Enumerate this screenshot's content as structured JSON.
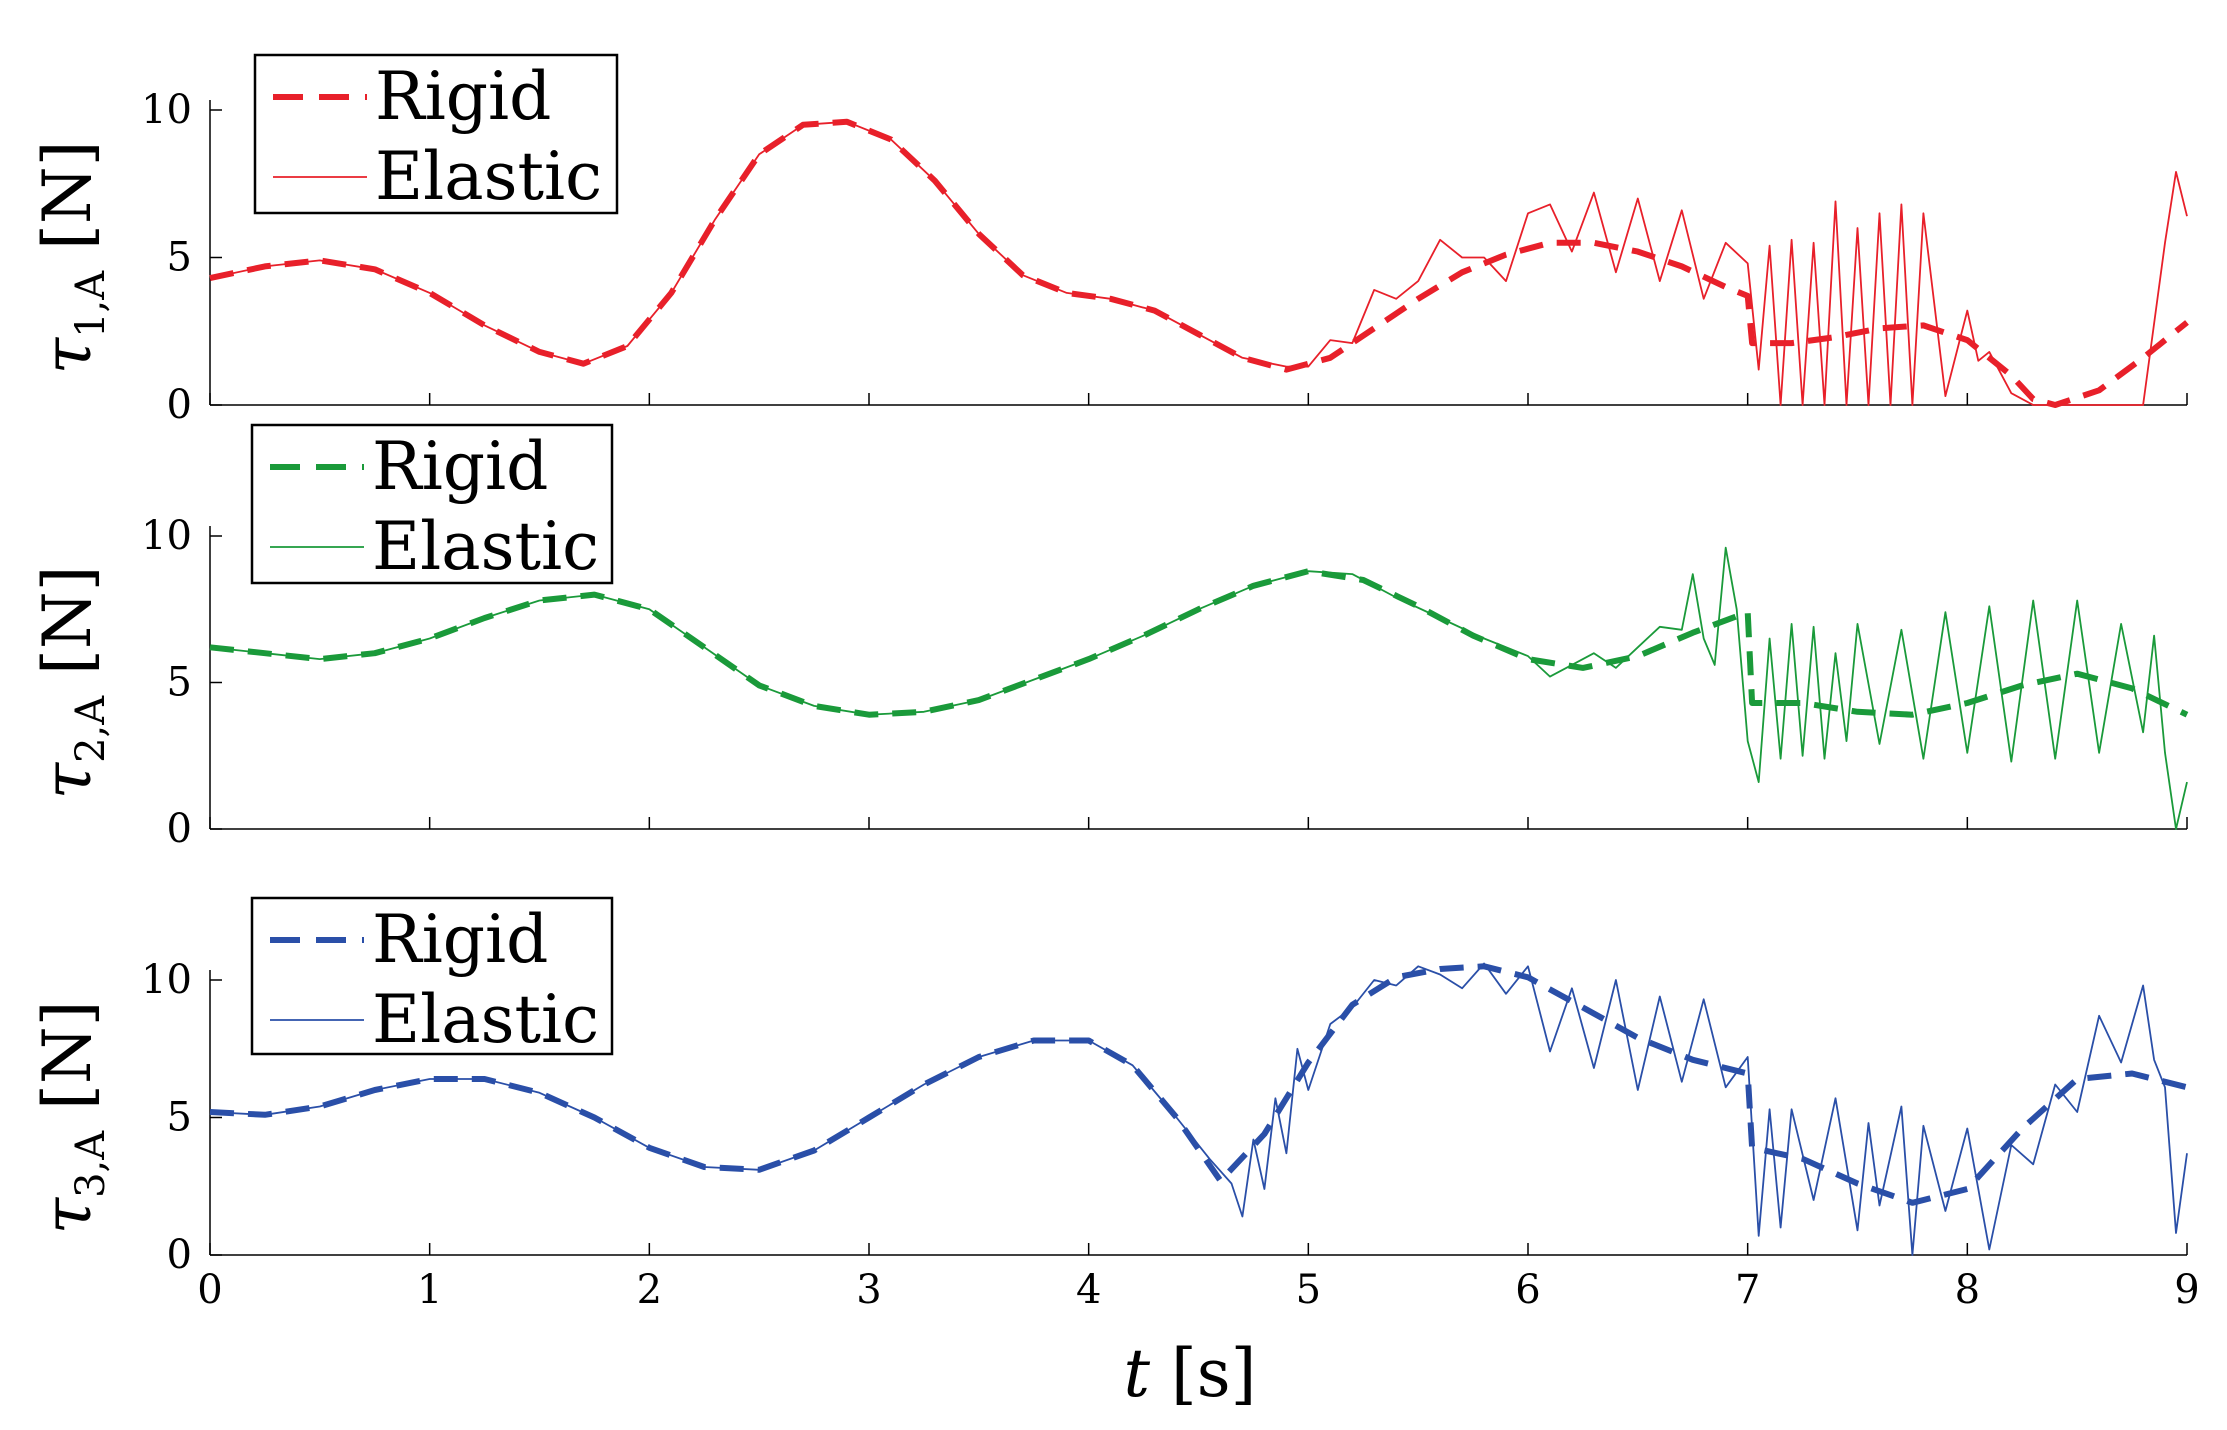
{
  "chart_data": [
    {
      "type": "line",
      "ylabel": "τ1,A [N]",
      "ylim": [
        0,
        10
      ],
      "xlim": [
        0,
        9
      ],
      "yticks": [
        "0",
        "5",
        "10"
      ],
      "legend_position": "top-left",
      "series": [
        {
          "name": "Rigid",
          "color": "#e8202a",
          "style": "dashed",
          "x": [
            0,
            0.25,
            0.5,
            0.75,
            1.0,
            1.25,
            1.5,
            1.7,
            1.9,
            2.1,
            2.3,
            2.5,
            2.7,
            2.9,
            3.1,
            3.3,
            3.5,
            3.7,
            3.9,
            4.1,
            4.3,
            4.5,
            4.7,
            4.9,
            5.1,
            5.3,
            5.5,
            5.7,
            5.9,
            6.1,
            6.3,
            6.5,
            6.7,
            6.9,
            7.0,
            7.02,
            7.2,
            7.4,
            7.6,
            7.8,
            8.0,
            8.2,
            8.3,
            8.4,
            8.6,
            8.8,
            9.0
          ],
          "y": [
            4.3,
            4.7,
            4.9,
            4.6,
            3.8,
            2.7,
            1.8,
            1.4,
            2.0,
            3.8,
            6.3,
            8.5,
            9.5,
            9.6,
            9.0,
            7.6,
            5.8,
            4.4,
            3.8,
            3.6,
            3.2,
            2.4,
            1.6,
            1.2,
            1.6,
            2.6,
            3.6,
            4.5,
            5.1,
            5.5,
            5.5,
            5.2,
            4.7,
            4.0,
            3.7,
            2.1,
            2.1,
            2.3,
            2.6,
            2.7,
            2.2,
            1.0,
            0.2,
            0.0,
            0.5,
            1.6,
            2.8
          ]
        },
        {
          "name": "Elastic",
          "color": "#e8202a",
          "style": "solid",
          "x": [
            0,
            0.25,
            0.5,
            0.75,
            1.0,
            1.25,
            1.5,
            1.7,
            1.9,
            2.1,
            2.3,
            2.5,
            2.7,
            2.9,
            3.1,
            3.3,
            3.5,
            3.7,
            3.9,
            4.1,
            4.3,
            4.5,
            4.7,
            4.9,
            5.0,
            5.1,
            5.2,
            5.3,
            5.4,
            5.5,
            5.6,
            5.7,
            5.8,
            5.9,
            6.0,
            6.1,
            6.2,
            6.3,
            6.4,
            6.5,
            6.6,
            6.7,
            6.8,
            6.9,
            7.0,
            7.05,
            7.1,
            7.15,
            7.2,
            7.25,
            7.3,
            7.35,
            7.4,
            7.45,
            7.5,
            7.55,
            7.6,
            7.65,
            7.7,
            7.75,
            7.8,
            7.9,
            8.0,
            8.05,
            8.1,
            8.2,
            8.3,
            8.5,
            8.7,
            8.8,
            8.9,
            8.95,
            9.0
          ],
          "y": [
            4.3,
            4.7,
            4.9,
            4.6,
            3.8,
            2.7,
            1.8,
            1.4,
            2.0,
            3.8,
            6.3,
            8.5,
            9.5,
            9.6,
            9.0,
            7.6,
            5.8,
            4.4,
            3.8,
            3.6,
            3.2,
            2.4,
            1.6,
            1.3,
            1.3,
            2.2,
            2.1,
            3.9,
            3.6,
            4.2,
            5.6,
            5.0,
            5.0,
            4.2,
            6.5,
            6.8,
            5.2,
            7.2,
            4.5,
            7.0,
            4.2,
            6.6,
            3.6,
            5.5,
            4.8,
            1.2,
            5.4,
            0.0,
            5.6,
            0.0,
            5.5,
            0.0,
            6.9,
            0.0,
            6.0,
            0.0,
            6.5,
            0.0,
            6.8,
            0.0,
            6.5,
            0.3,
            3.2,
            1.5,
            1.8,
            0.4,
            0.0,
            0.0,
            0.0,
            0.0,
            5.5,
            7.9,
            6.4
          ]
        }
      ]
    },
    {
      "type": "line",
      "ylabel": "τ2,A [N]",
      "ylim": [
        0,
        10
      ],
      "xlim": [
        0,
        9
      ],
      "yticks": [
        "0",
        "5",
        "10"
      ],
      "legend_position": "top-left",
      "series": [
        {
          "name": "Rigid",
          "color": "#1a9a3a",
          "style": "dashed",
          "x": [
            0,
            0.25,
            0.5,
            0.75,
            1.0,
            1.25,
            1.5,
            1.75,
            2.0,
            2.25,
            2.5,
            2.75,
            3.0,
            3.25,
            3.5,
            3.75,
            4.0,
            4.25,
            4.5,
            4.75,
            5.0,
            5.25,
            5.5,
            5.75,
            6.0,
            6.25,
            6.5,
            6.75,
            7.0,
            7.02,
            7.25,
            7.5,
            7.75,
            8.0,
            8.25,
            8.5,
            8.75,
            9.0
          ],
          "y": [
            6.2,
            6.0,
            5.8,
            6.0,
            6.5,
            7.2,
            7.8,
            8.0,
            7.5,
            6.2,
            4.9,
            4.2,
            3.9,
            4.0,
            4.4,
            5.1,
            5.8,
            6.6,
            7.5,
            8.3,
            8.8,
            8.5,
            7.6,
            6.6,
            5.8,
            5.5,
            5.9,
            6.7,
            7.4,
            4.3,
            4.3,
            4.0,
            3.9,
            4.3,
            4.9,
            5.3,
            4.8,
            3.9
          ]
        },
        {
          "name": "Elastic",
          "color": "#1a9a3a",
          "style": "solid",
          "x": [
            0,
            0.25,
            0.5,
            0.75,
            1.0,
            1.25,
            1.5,
            1.75,
            2.0,
            2.25,
            2.5,
            2.75,
            3.0,
            3.25,
            3.5,
            3.75,
            4.0,
            4.25,
            4.5,
            4.75,
            5.0,
            5.2,
            5.4,
            5.6,
            5.8,
            6.0,
            6.1,
            6.2,
            6.3,
            6.4,
            6.5,
            6.6,
            6.7,
            6.75,
            6.8,
            6.85,
            6.9,
            6.95,
            7.0,
            7.05,
            7.1,
            7.15,
            7.2,
            7.25,
            7.3,
            7.35,
            7.4,
            7.45,
            7.5,
            7.6,
            7.7,
            7.8,
            7.9,
            8.0,
            8.1,
            8.2,
            8.3,
            8.4,
            8.5,
            8.6,
            8.7,
            8.8,
            8.85,
            8.9,
            8.95,
            9.0
          ],
          "y": [
            6.2,
            6.0,
            5.8,
            6.0,
            6.5,
            7.2,
            7.8,
            8.0,
            7.5,
            6.2,
            4.9,
            4.2,
            3.9,
            4.0,
            4.4,
            5.1,
            5.8,
            6.6,
            7.5,
            8.3,
            8.8,
            8.7,
            7.9,
            7.2,
            6.5,
            5.9,
            5.2,
            5.6,
            6.0,
            5.5,
            6.2,
            6.9,
            6.8,
            8.7,
            6.5,
            5.6,
            9.6,
            7.5,
            3.0,
            1.6,
            6.5,
            2.4,
            7.0,
            2.5,
            6.9,
            2.4,
            6.0,
            3.0,
            7.0,
            2.9,
            6.8,
            2.4,
            7.4,
            2.6,
            7.6,
            2.3,
            7.8,
            2.4,
            7.8,
            2.6,
            7.0,
            3.3,
            6.6,
            2.6,
            0.0,
            1.6
          ]
        }
      ]
    },
    {
      "type": "line",
      "ylabel": "τ3,A [N]",
      "xlabel": "t [s]",
      "ylim": [
        0,
        10
      ],
      "xlim": [
        0,
        9
      ],
      "yticks": [
        "0",
        "5",
        "10"
      ],
      "xticks": [
        "0",
        "1",
        "2",
        "3",
        "4",
        "5",
        "6",
        "7",
        "8",
        "9"
      ],
      "legend_position": "top-left",
      "series": [
        {
          "name": "Rigid",
          "color": "#2a4fa8",
          "style": "dashed",
          "x": [
            0,
            0.25,
            0.5,
            0.75,
            1.0,
            1.25,
            1.5,
            1.75,
            2.0,
            2.25,
            2.5,
            2.75,
            3.0,
            3.25,
            3.5,
            3.75,
            4.0,
            4.2,
            4.4,
            4.6,
            4.8,
            5.0,
            5.2,
            5.4,
            5.6,
            5.8,
            6.0,
            6.25,
            6.5,
            6.75,
            7.0,
            7.02,
            7.25,
            7.5,
            7.75,
            8.0,
            8.25,
            8.5,
            8.75,
            9.0
          ],
          "y": [
            5.2,
            5.1,
            5.4,
            6.0,
            6.4,
            6.4,
            5.9,
            5.0,
            3.9,
            3.2,
            3.1,
            3.8,
            5.0,
            6.2,
            7.2,
            7.8,
            7.8,
            6.9,
            5.0,
            2.7,
            4.4,
            7.0,
            9.1,
            10.1,
            10.4,
            10.5,
            10.1,
            9.0,
            7.9,
            7.1,
            6.6,
            3.9,
            3.5,
            2.6,
            1.9,
            2.4,
            4.6,
            6.4,
            6.6,
            6.1
          ]
        },
        {
          "name": "Elastic",
          "color": "#2a4fa8",
          "style": "solid",
          "x": [
            0,
            0.25,
            0.5,
            0.75,
            1.0,
            1.25,
            1.5,
            1.75,
            2.0,
            2.25,
            2.5,
            2.75,
            3.0,
            3.25,
            3.5,
            3.75,
            4.0,
            4.2,
            4.4,
            4.55,
            4.65,
            4.7,
            4.75,
            4.8,
            4.85,
            4.9,
            4.95,
            5.0,
            5.1,
            5.2,
            5.3,
            5.4,
            5.5,
            5.6,
            5.7,
            5.8,
            5.9,
            6.0,
            6.1,
            6.2,
            6.3,
            6.4,
            6.5,
            6.6,
            6.7,
            6.8,
            6.9,
            7.0,
            7.05,
            7.1,
            7.15,
            7.2,
            7.3,
            7.4,
            7.5,
            7.55,
            7.6,
            7.7,
            7.75,
            7.8,
            7.9,
            8.0,
            8.1,
            8.2,
            8.3,
            8.4,
            8.5,
            8.6,
            8.7,
            8.8,
            8.85,
            8.9,
            8.95,
            9.0
          ],
          "y": [
            5.2,
            5.1,
            5.4,
            6.0,
            6.4,
            6.4,
            5.9,
            5.0,
            3.9,
            3.2,
            3.1,
            3.8,
            5.0,
            6.2,
            7.2,
            7.8,
            7.8,
            6.9,
            5.0,
            3.5,
            2.6,
            1.4,
            4.2,
            2.4,
            5.7,
            3.7,
            7.5,
            6.0,
            8.4,
            9.0,
            10.0,
            9.8,
            10.5,
            10.2,
            9.7,
            10.6,
            9.5,
            10.5,
            7.4,
            9.7,
            6.8,
            10.0,
            6.0,
            9.4,
            6.3,
            9.3,
            6.1,
            7.2,
            0.7,
            5.3,
            1.0,
            5.3,
            2.0,
            5.7,
            0.9,
            4.8,
            1.8,
            5.4,
            0.0,
            4.7,
            1.6,
            4.6,
            0.2,
            4.0,
            3.3,
            6.2,
            5.2,
            8.7,
            7.0,
            9.8,
            7.1,
            6.1,
            0.8,
            3.7
          ]
        }
      ]
    }
  ]
}
